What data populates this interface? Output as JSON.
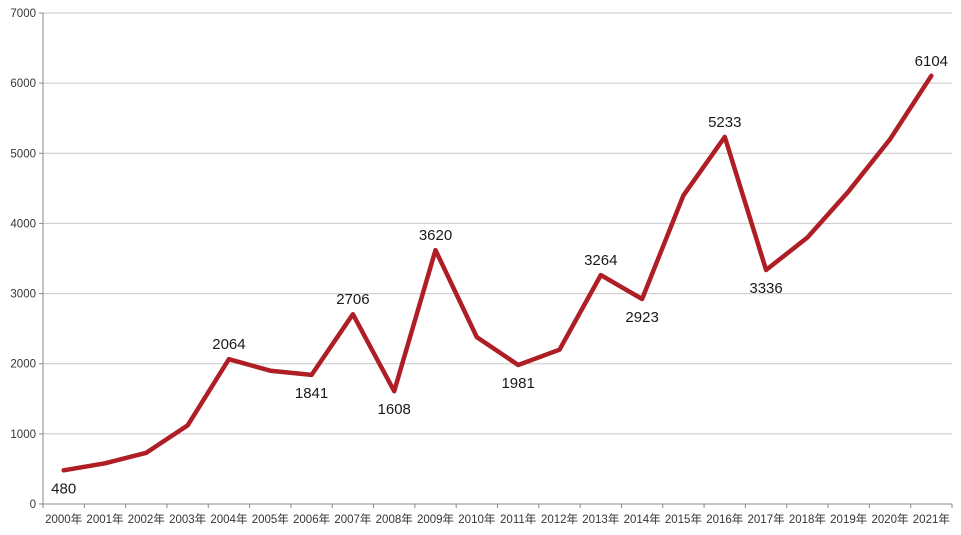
{
  "chart_data": {
    "type": "line",
    "title": "",
    "xlabel": "",
    "ylabel": "",
    "x": [
      "2000年",
      "2001年",
      "2002年",
      "2003年",
      "2004年",
      "2005年",
      "2006年",
      "2007年",
      "2008年",
      "2009年",
      "2010年",
      "2011年",
      "2012年",
      "2013年",
      "2014年",
      "2015年",
      "2016年",
      "2017年",
      "2018年",
      "2019年",
      "2020年",
      "2021年"
    ],
    "values": [
      480,
      580,
      730,
      1120,
      2064,
      1900,
      1841,
      2706,
      1608,
      3620,
      2380,
      1981,
      2200,
      3264,
      2923,
      4400,
      5233,
      3336,
      3800,
      4460,
      5200,
      6104
    ],
    "ylim": [
      0,
      7000
    ],
    "ytick_interval": 1000,
    "ytick_labels": [
      "0",
      "1000",
      "2000",
      "3000",
      "4000",
      "5000",
      "6000",
      "7000"
    ],
    "grid": true,
    "legend_position": "none",
    "data_labels": [
      {
        "index": 0,
        "text": "480",
        "placement": "below"
      },
      {
        "index": 4,
        "text": "2064",
        "placement": "above"
      },
      {
        "index": 6,
        "text": "1841",
        "placement": "below"
      },
      {
        "index": 7,
        "text": "2706",
        "placement": "above"
      },
      {
        "index": 8,
        "text": "1608",
        "placement": "below"
      },
      {
        "index": 9,
        "text": "3620",
        "placement": "above"
      },
      {
        "index": 11,
        "text": "1981",
        "placement": "below"
      },
      {
        "index": 13,
        "text": "3264",
        "placement": "above"
      },
      {
        "index": 14,
        "text": "2923",
        "placement": "below"
      },
      {
        "index": 16,
        "text": "5233",
        "placement": "above"
      },
      {
        "index": 17,
        "text": "3336",
        "placement": "below"
      },
      {
        "index": 21,
        "text": "6104",
        "placement": "above"
      }
    ],
    "colors": {
      "series_line": "#AE1E24",
      "gridline": "#c7c7c7",
      "axis_line": "#898989",
      "axis_text": "#363636",
      "data_label_text": "#1a1a1a",
      "background": "#ffffff"
    }
  }
}
